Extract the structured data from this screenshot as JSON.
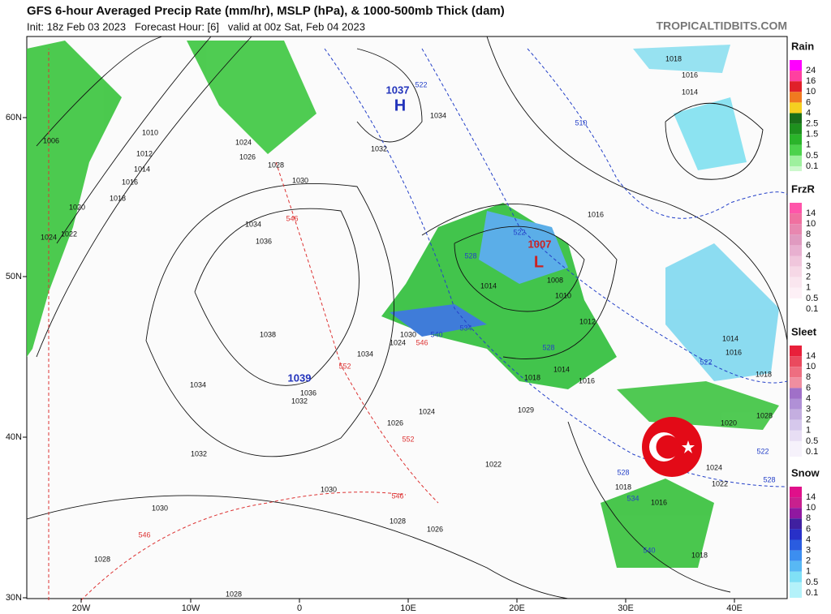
{
  "header": {
    "title": "GFS 6-hour Averaged Precip Rate (mm/hr), MSLP (hPa), & 1000-500mb Thick (dam)",
    "subtitle": "Init: 18z Feb 03 2023   Forecast Hour: [6]   valid at 00z Sat, Feb 04 2023",
    "site": "TROPICALTIDBITS.COM"
  },
  "axes": {
    "lon_labels": [
      "20W",
      "10W",
      "0",
      "10E",
      "20E",
      "30E",
      "40E"
    ],
    "lat_labels": [
      "60N",
      "50N",
      "40N",
      "30N"
    ]
  },
  "legend": [
    {
      "title": "Rain",
      "labels": [
        "24",
        "16",
        "10",
        "6",
        "4",
        "2.5",
        "1.5",
        "1",
        "0.5",
        "0.1"
      ]
    },
    {
      "title": "FrzR",
      "labels": [
        "14",
        "10",
        "8",
        "6",
        "4",
        "3",
        "2",
        "1",
        "0.5",
        "0.1"
      ]
    },
    {
      "title": "Sleet",
      "labels": [
        "14",
        "10",
        "8",
        "6",
        "4",
        "3",
        "2",
        "1",
        "0.5",
        "0.1"
      ]
    },
    {
      "title": "Snow",
      "labels": [
        "14",
        "10",
        "8",
        "6",
        "4",
        "3",
        "2",
        "1",
        "0.5",
        "0.1"
      ]
    }
  ],
  "map": {
    "centers": [
      {
        "value": "1037",
        "symbol": "H"
      },
      {
        "value": "1007",
        "symbol": "L"
      },
      {
        "value": "1039",
        "symbol": ""
      }
    ],
    "isobar_labels": [
      "1018",
      "1016",
      "1014",
      "1006",
      "1010",
      "1012",
      "1014",
      "1016",
      "1018",
      "1020",
      "1022",
      "1024",
      "1024",
      "1026",
      "1028",
      "1030",
      "1034",
      "1036",
      "1038",
      "1034",
      "1032",
      "1036",
      "1032",
      "1030",
      "1028",
      "1028",
      "1026",
      "1028",
      "1030",
      "1022",
      "1024",
      "1026",
      "1029",
      "1034",
      "1032",
      "1016",
      "1014",
      "1008",
      "1010",
      "1012",
      "1014",
      "1016",
      "1018",
      "1014",
      "1016",
      "1018",
      "1020",
      "1028",
      "1024",
      "1022",
      "1016",
      "1018",
      "1018",
      "1024",
      "1030",
      "1034"
    ],
    "thickness_labels": [
      "546",
      "552",
      "552",
      "546",
      "546",
      "546",
      "540",
      "534",
      "528",
      "522",
      "522",
      "510",
      "528",
      "522",
      "522",
      "528",
      "528",
      "534",
      "540"
    ]
  }
}
